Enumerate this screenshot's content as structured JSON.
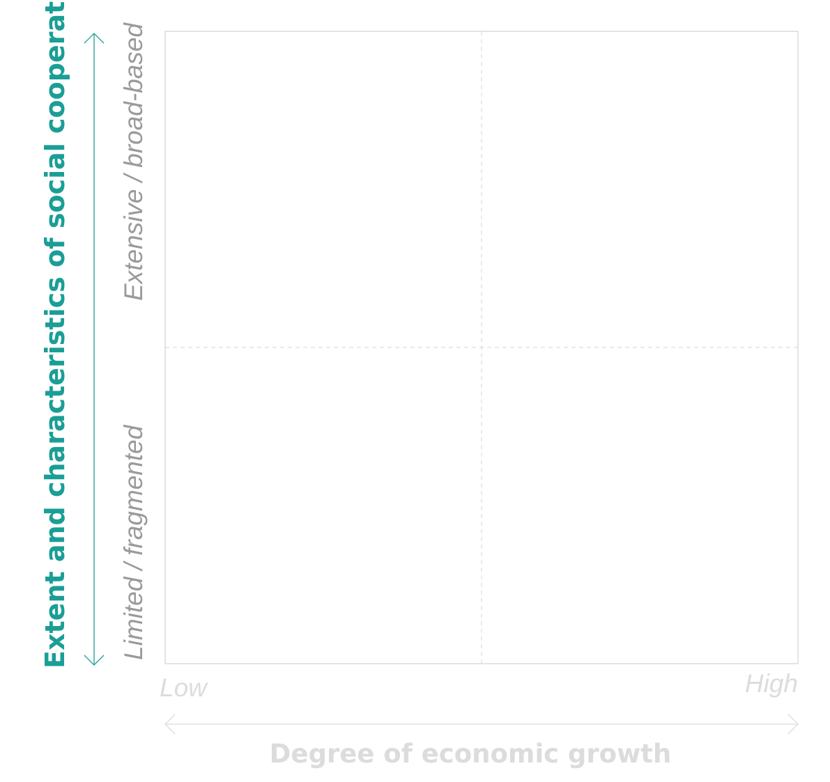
{
  "y_axis": {
    "title": "Extent and characteristics of social cooperation",
    "high_label": "Extensive / broad-based",
    "low_label": "Limited / fragmented"
  },
  "x_axis": {
    "title": "Degree of economic growth",
    "low_label": "Low",
    "high_label": "High"
  }
}
